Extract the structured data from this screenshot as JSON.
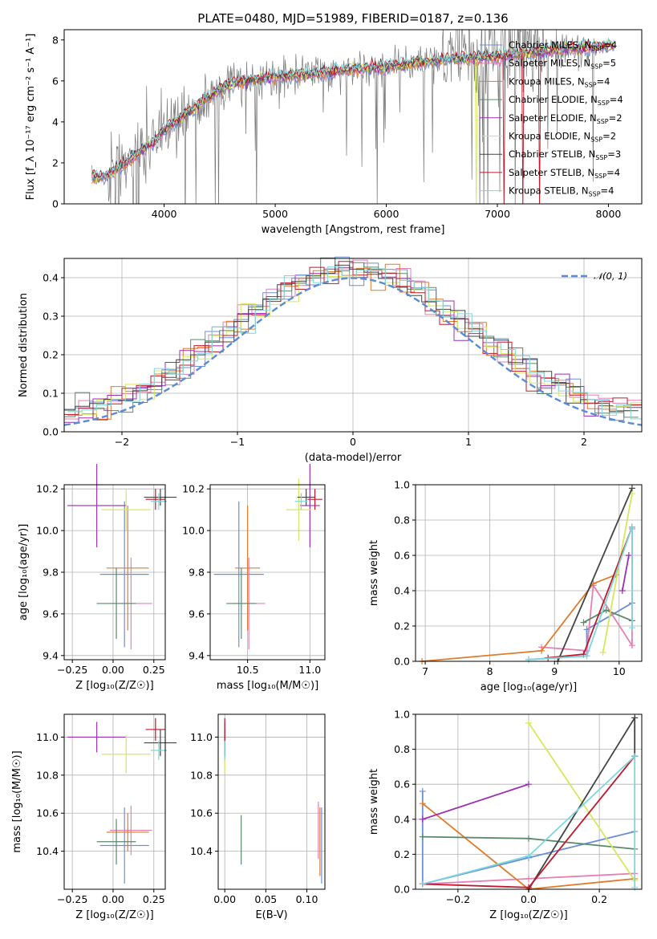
{
  "title": "PLATE=0480, MJD=51989, FIBERID=0187, z=0.136",
  "colors": {
    "chabrier_miles": "#6a8fd8",
    "salpeter_miles": "#e57fb4",
    "kroupa_miles": "#e07b2b",
    "chabrier_elodie": "#5a8a6a",
    "salpeter_elodie": "#9b2fb5",
    "kroupa_elodie": "#d6e85a",
    "chabrier_stelib": "#444444",
    "salpeter_stelib": "#c0182a",
    "kroupa_stelib": "#7dd6dc",
    "data": "#7a7a7a",
    "normal": "#5b8bd6"
  },
  "legend_spectrum": [
    "Chabrier MILES, N_SSP=4",
    "Salpeter MILES, N_SSP=5",
    "Kroupa MILES, N_SSP=4",
    "Chabrier ELODIE, N_SSP=4",
    "Salpeter ELODIE, N_SSP=2",
    "Kroupa ELODIE, N_SSP=2",
    "Chabrier STELIB, N_SSP=3",
    "Salpeter STELIB, N_SSP=4",
    "Kroupa STELIB, N_SSP=4"
  ],
  "legend_hist": "𝒩(0, 1)",
  "axes": {
    "spec_x": "wavelength [Angstrom, rest frame]",
    "spec_y": "Flux [f_λ 10⁻¹⁷ erg cm⁻² s⁻¹ A⁻¹]",
    "hist_x": "(data-model)/error",
    "hist_y": "Normed distribution",
    "z_label": "Z [log₁₀(Z/Z☉)]",
    "age_label": "age  [log₁₀(age/yr)]",
    "mass_label": "mass [log₁₀(M/M☉)]",
    "ebv_label": "E(B-V)",
    "mw_label": "mass weight"
  },
  "chart_data": [
    {
      "type": "line",
      "title": "PLATE=0480, MJD=51989, FIBERID=0187, z=0.136",
      "xlabel": "wavelength [Angstrom, rest frame]",
      "ylabel": "Flux [f_λ 10⁻¹⁷ erg cm⁻² s⁻¹ A⁻¹]",
      "xlim": [
        3100,
        8300
      ],
      "ylim": [
        0,
        8.5
      ],
      "xticks": [
        4000,
        5000,
        6000,
        7000,
        8000
      ],
      "yticks": [
        0,
        2,
        4,
        6,
        8
      ],
      "continuum": {
        "x": [
          3350,
          3500,
          3600,
          3700,
          3800,
          3900,
          4000,
          4100,
          4200,
          4300,
          4400,
          4500,
          4700,
          5000,
          5300,
          5600,
          6000,
          6500,
          7000,
          7500,
          8000
        ],
        "y": [
          1.3,
          1.4,
          1.8,
          2.2,
          2.6,
          3.0,
          3.6,
          4.0,
          4.4,
          4.8,
          5.2,
          5.6,
          6.0,
          6.2,
          6.3,
          6.5,
          6.7,
          7.0,
          7.2,
          7.5,
          7.7
        ]
      },
      "grid": false,
      "legend_position": "upper right"
    },
    {
      "type": "bar",
      "xlabel": "(data-model)/error",
      "ylabel": "Normed distribution",
      "xlim": [
        -2.5,
        2.5
      ],
      "ylim": [
        0,
        0.45
      ],
      "xticks": [
        -2,
        -1,
        0,
        1,
        2
      ],
      "yticks": [
        0.0,
        0.1,
        0.2,
        0.3,
        0.4
      ],
      "normal_mean": 0,
      "normal_sigma": 1,
      "grid": true,
      "legend_position": "upper right"
    },
    {
      "type": "scatter",
      "xlabel": "Z [log₁₀(Z/Z☉)]",
      "ylabel": "age  [log₁₀(age/yr)]",
      "xlim": [
        -0.3,
        0.32
      ],
      "ylim": [
        9.38,
        10.22
      ],
      "xticks": [
        -0.25,
        0.0,
        0.25
      ],
      "yticks": [
        9.4,
        9.6,
        9.8,
        10.0,
        10.2
      ],
      "series": [
        {
          "name": "Chabrier MILES",
          "x": 0.07,
          "y": 9.79,
          "xerr": 0.15,
          "yerr": 0.35
        },
        {
          "name": "Salpeter MILES",
          "x": 0.11,
          "y": 9.65,
          "xerr": 0.13,
          "yerr": 0.22
        },
        {
          "name": "Kroupa MILES",
          "x": 0.09,
          "y": 9.82,
          "xerr": 0.13,
          "yerr": 0.3
        },
        {
          "name": "Chabrier ELODIE",
          "x": 0.02,
          "y": 9.65,
          "xerr": 0.12,
          "yerr": 0.17
        },
        {
          "name": "Salpeter ELODIE",
          "x": -0.1,
          "y": 10.12,
          "xerr": 0.18,
          "yerr": 0.2
        },
        {
          "name": "Kroupa ELODIE",
          "x": 0.08,
          "y": 10.1,
          "xerr": 0.15,
          "yerr": 0.1
        },
        {
          "name": "Chabrier STELIB",
          "x": 0.29,
          "y": 10.16,
          "xerr": 0.1,
          "yerr": 0.04
        },
        {
          "name": "Salpeter STELIB",
          "x": 0.26,
          "y": 10.15,
          "xerr": 0.06,
          "yerr": 0.05
        },
        {
          "name": "Kroupa STELIB",
          "x": 0.28,
          "y": 10.14,
          "xerr": 0.05,
          "yerr": 0.04
        }
      ]
    },
    {
      "type": "scatter",
      "xlabel": "mass [log₁₀(M/M☉)]",
      "ylabel": "",
      "xlim": [
        10.2,
        11.12
      ],
      "ylim": [
        9.38,
        10.22
      ],
      "xticks": [
        10.5,
        11.0
      ],
      "yticks": [
        9.4,
        9.6,
        9.8,
        10.0,
        10.2
      ],
      "series": [
        {
          "name": "Chabrier MILES",
          "x": 10.43,
          "y": 9.79,
          "xerr": 0.2,
          "yerr": 0.35
        },
        {
          "name": "Salpeter MILES",
          "x": 10.51,
          "y": 9.65,
          "xerr": 0.13,
          "yerr": 0.22
        },
        {
          "name": "Kroupa MILES",
          "x": 10.5,
          "y": 9.82,
          "xerr": 0.1,
          "yerr": 0.3
        },
        {
          "name": "Chabrier ELODIE",
          "x": 10.45,
          "y": 9.65,
          "xerr": 0.12,
          "yerr": 0.17
        },
        {
          "name": "Salpeter ELODIE",
          "x": 11.0,
          "y": 10.12,
          "xerr": 0.08,
          "yerr": 0.2
        },
        {
          "name": "Kroupa ELODIE",
          "x": 10.91,
          "y": 10.1,
          "xerr": 0.1,
          "yerr": 0.15
        },
        {
          "name": "Chabrier STELIB",
          "x": 10.97,
          "y": 10.16,
          "xerr": 0.07,
          "yerr": 0.04
        },
        {
          "name": "Salpeter STELIB",
          "x": 11.04,
          "y": 10.15,
          "xerr": 0.06,
          "yerr": 0.05
        },
        {
          "name": "Kroupa STELIB",
          "x": 10.93,
          "y": 10.14,
          "xerr": 0.05,
          "yerr": 0.04
        }
      ]
    },
    {
      "type": "line",
      "xlabel": "age  [log₁₀(age/yr)]",
      "ylabel": "mass weight",
      "xlim": [
        6.85,
        10.35
      ],
      "ylim": [
        0,
        1.0
      ],
      "xticks": [
        7,
        8,
        9,
        10
      ],
      "yticks": [
        0.0,
        0.2,
        0.4,
        0.6,
        0.8,
        1.0
      ],
      "grid": true,
      "series": [
        {
          "name": "Chabrier MILES",
          "x": [
            8.6,
            9.5,
            9.5,
            10.2,
            10.2
          ],
          "y": [
            0.01,
            0.03,
            0.18,
            0.33,
            0.76
          ]
        },
        {
          "name": "Salpeter MILES",
          "x": [
            8.8,
            9.5,
            9.6,
            10.2,
            10.2
          ],
          "y": [
            0.08,
            0.06,
            0.43,
            0.09,
            0.75
          ]
        },
        {
          "name": "Kroupa MILES",
          "x": [
            6.95,
            8.8,
            9.6,
            9.95
          ],
          "y": [
            0.0,
            0.06,
            0.44,
            0.49
          ]
        },
        {
          "name": "Chabrier ELODIE",
          "x": [
            9.45,
            9.8,
            10.2
          ],
          "y": [
            0.22,
            0.29,
            0.23
          ]
        },
        {
          "name": "Salpeter ELODIE",
          "x": [
            10.05,
            10.15
          ],
          "y": [
            0.4,
            0.6
          ]
        },
        {
          "name": "Kroupa ELODIE",
          "x": [
            9.75,
            10.2
          ],
          "y": [
            0.05,
            0.95
          ]
        },
        {
          "name": "Chabrier STELIB",
          "x": [
            9.05,
            10.2
          ],
          "y": [
            0.0,
            0.98
          ]
        },
        {
          "name": "Salpeter STELIB",
          "x": [
            8.9,
            9.45,
            10.2
          ],
          "y": [
            0.02,
            0.04,
            0.76
          ]
        },
        {
          "name": "Kroupa STELIB",
          "x": [
            8.6,
            9.5,
            10.2,
            10.2
          ],
          "y": [
            0.01,
            0.03,
            0.76,
            0.19
          ]
        }
      ]
    },
    {
      "type": "scatter",
      "xlabel": "Z [log₁₀(Z/Z☉)]",
      "ylabel": "mass [log₁₀(M/M☉)]",
      "xlim": [
        -0.3,
        0.32
      ],
      "ylim": [
        10.2,
        11.12
      ],
      "xticks": [
        -0.25,
        0.0,
        0.25
      ],
      "yticks": [
        10.4,
        10.6,
        10.8,
        11.0
      ],
      "series": [
        {
          "name": "Chabrier MILES",
          "x": 0.07,
          "y": 10.43,
          "xerr": 0.15,
          "yerr": 0.2
        },
        {
          "name": "Salpeter MILES",
          "x": 0.11,
          "y": 10.51,
          "xerr": 0.13,
          "yerr": 0.13
        },
        {
          "name": "Kroupa MILES",
          "x": 0.09,
          "y": 10.5,
          "xerr": 0.13,
          "yerr": 0.1
        },
        {
          "name": "Chabrier ELODIE",
          "x": 0.02,
          "y": 10.45,
          "xerr": 0.12,
          "yerr": 0.12
        },
        {
          "name": "Salpeter ELODIE",
          "x": -0.1,
          "y": 11.0,
          "xerr": 0.18,
          "yerr": 0.08
        },
        {
          "name": "Kroupa ELODIE",
          "x": 0.08,
          "y": 10.91,
          "xerr": 0.15,
          "yerr": 0.1
        },
        {
          "name": "Chabrier STELIB",
          "x": 0.29,
          "y": 10.97,
          "xerr": 0.1,
          "yerr": 0.07
        },
        {
          "name": "Salpeter STELIB",
          "x": 0.26,
          "y": 11.04,
          "xerr": 0.06,
          "yerr": 0.06
        },
        {
          "name": "Kroupa STELIB",
          "x": 0.28,
          "y": 10.93,
          "xerr": 0.05,
          "yerr": 0.05
        }
      ]
    },
    {
      "type": "scatter",
      "xlabel": "E(B-V)",
      "ylabel": "",
      "xlim": [
        -0.008,
        0.122
      ],
      "ylim": [
        10.2,
        11.12
      ],
      "xticks": [
        0.0,
        0.05,
        0.1
      ],
      "yticks": [
        10.4,
        10.6,
        10.8,
        11.0
      ],
      "series": [
        {
          "name": "Chabrier MILES",
          "x": 0.118,
          "y": 10.43,
          "xerr": 0,
          "yerr": 0.2
        },
        {
          "name": "Salpeter MILES",
          "x": 0.114,
          "y": 10.51,
          "xerr": 0,
          "yerr": 0.15
        },
        {
          "name": "Kroupa MILES",
          "x": 0.116,
          "y": 10.45,
          "xerr": 0,
          "yerr": 0.18
        },
        {
          "name": "Chabrier ELODIE",
          "x": 0.02,
          "y": 10.46,
          "xerr": 0,
          "yerr": 0.13
        },
        {
          "name": "Salpeter ELODIE",
          "x": 0.0,
          "y": 11.0,
          "xerr": 0,
          "yerr": 0.08
        },
        {
          "name": "Kroupa ELODIE",
          "x": 0.0,
          "y": 10.91,
          "xerr": 0,
          "yerr": 0.1
        },
        {
          "name": "Chabrier STELIB",
          "x": 0.0,
          "y": 10.97,
          "xerr": 0,
          "yerr": 0.07
        },
        {
          "name": "Salpeter STELIB",
          "x": 0.0,
          "y": 11.04,
          "xerr": 0,
          "yerr": 0.06
        },
        {
          "name": "Kroupa STELIB",
          "x": 0.0,
          "y": 10.93,
          "xerr": 0,
          "yerr": 0.05
        }
      ]
    },
    {
      "type": "line",
      "xlabel": "Z [log₁₀(Z/Z☉)]",
      "ylabel": "mass weight",
      "xlim": [
        -0.32,
        0.32
      ],
      "ylim": [
        0,
        1.0
      ],
      "xticks": [
        -0.2,
        0.0,
        0.2
      ],
      "yticks": [
        0.0,
        0.2,
        0.4,
        0.6,
        0.8,
        1.0
      ],
      "grid": true,
      "series": [
        {
          "name": "Chabrier MILES",
          "x": [
            -0.3,
            -0.3,
            0.0,
            0.3
          ],
          "y": [
            0.56,
            0.03,
            0.18,
            0.33
          ]
        },
        {
          "name": "Salpeter MILES",
          "x": [
            -0.3,
            0.0,
            0.3
          ],
          "y": [
            0.03,
            0.06,
            0.09
          ]
        },
        {
          "name": "Kroupa MILES",
          "x": [
            -0.3,
            0.0,
            0.3
          ],
          "y": [
            0.49,
            0.0,
            0.06
          ]
        },
        {
          "name": "Chabrier ELODIE",
          "x": [
            -0.3,
            0.0,
            0.3
          ],
          "y": [
            0.3,
            0.29,
            0.23
          ]
        },
        {
          "name": "Salpeter ELODIE",
          "x": [
            -0.3,
            0.0
          ],
          "y": [
            0.4,
            0.6
          ]
        },
        {
          "name": "Kroupa ELODIE",
          "x": [
            0.0,
            0.3
          ],
          "y": [
            0.95,
            0.05
          ]
        },
        {
          "name": "Chabrier STELIB",
          "x": [
            0.0,
            0.3,
            0.3
          ],
          "y": [
            0.0,
            0.98,
            0.76
          ]
        },
        {
          "name": "Salpeter STELIB",
          "x": [
            -0.3,
            0.0,
            0.3
          ],
          "y": [
            0.03,
            0.01,
            0.76
          ]
        },
        {
          "name": "Kroupa STELIB",
          "x": [
            -0.3,
            0.0,
            0.3,
            0.3
          ],
          "y": [
            0.03,
            0.19,
            0.76,
            0.01
          ]
        }
      ]
    }
  ]
}
